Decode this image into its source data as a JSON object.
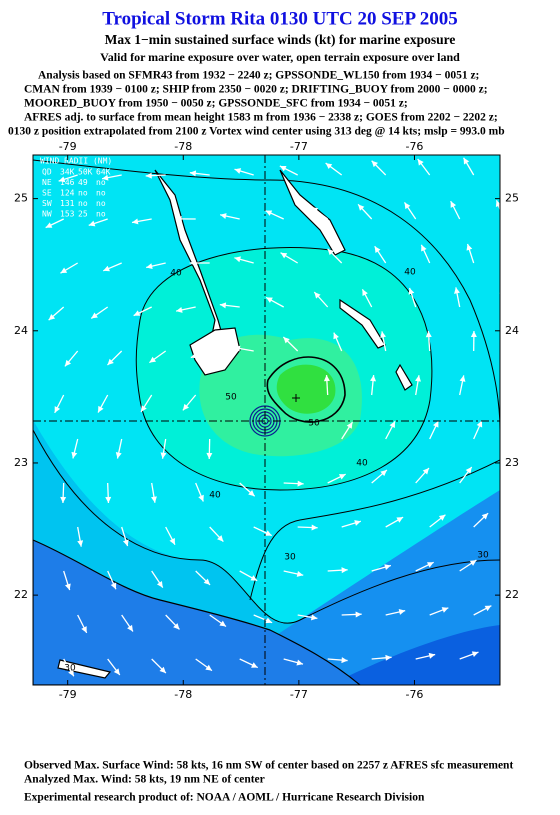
{
  "header": {
    "title": "Tropical Storm Rita 0130 UTC 20 SEP 2005",
    "subtitle": "Max 1−min sustained surface winds (kt) for marine exposure",
    "validity": "Valid for marine exposure over water, open terrain exposure over land",
    "sources": [
      "Analysis based on  SFMR43 from 1932 − 2240 z;  GPSSONDE_WL150 from 1934 − 0051 z;",
      "CMAN from 1939 − 0100 z;  SHIP from 2350 − 0020 z;  DRIFTING_BUOY from 2000 − 0000 z;",
      "MOORED_BUOY from 1950 − 0050 z;  GPSSONDE_SFC from 1934 − 0051 z;",
      "AFRES adj. to surface from mean height 1583 m from 1936 − 2338 z;  GOES from 2202 − 2202 z;",
      "0130 z position extrapolated from 2100 z Vortex wind center using 313 deg @ 14 kts; mslp = 993.0 mb"
    ]
  },
  "map": {
    "xlim": [
      -79.3,
      -75.26
    ],
    "ylim": [
      21.32,
      25.33
    ],
    "xticks": [
      -79,
      -78,
      -77,
      -76
    ],
    "yticks": [
      22,
      23,
      24,
      25
    ],
    "wind_radii": {
      "title": "WIND RADII (NM)",
      "rows": [
        [
          "QD",
          "34K",
          "50K",
          "64K"
        ],
        [
          "NE",
          "146",
          "49",
          "no"
        ],
        [
          "SE",
          "124",
          "no",
          "no"
        ],
        [
          "SW",
          "131",
          "no",
          "no"
        ],
        [
          "NW",
          "153",
          "25",
          "no"
        ]
      ]
    },
    "contour_labels": [
      "40",
      "40",
      "40",
      "40",
      "50",
      "50",
      "30",
      "30",
      "30"
    ]
  },
  "footer": [
    "Observed Max. Surface Wind: 58 kts, 16 nm SW of center based on 2257 z AFRES sfc measurement",
    "Analyzed Max. Wind: 58 kts, 19 nm NE of center",
    "Experimental research product of:  NOAA / AOML / Hurricane Research Division"
  ]
}
